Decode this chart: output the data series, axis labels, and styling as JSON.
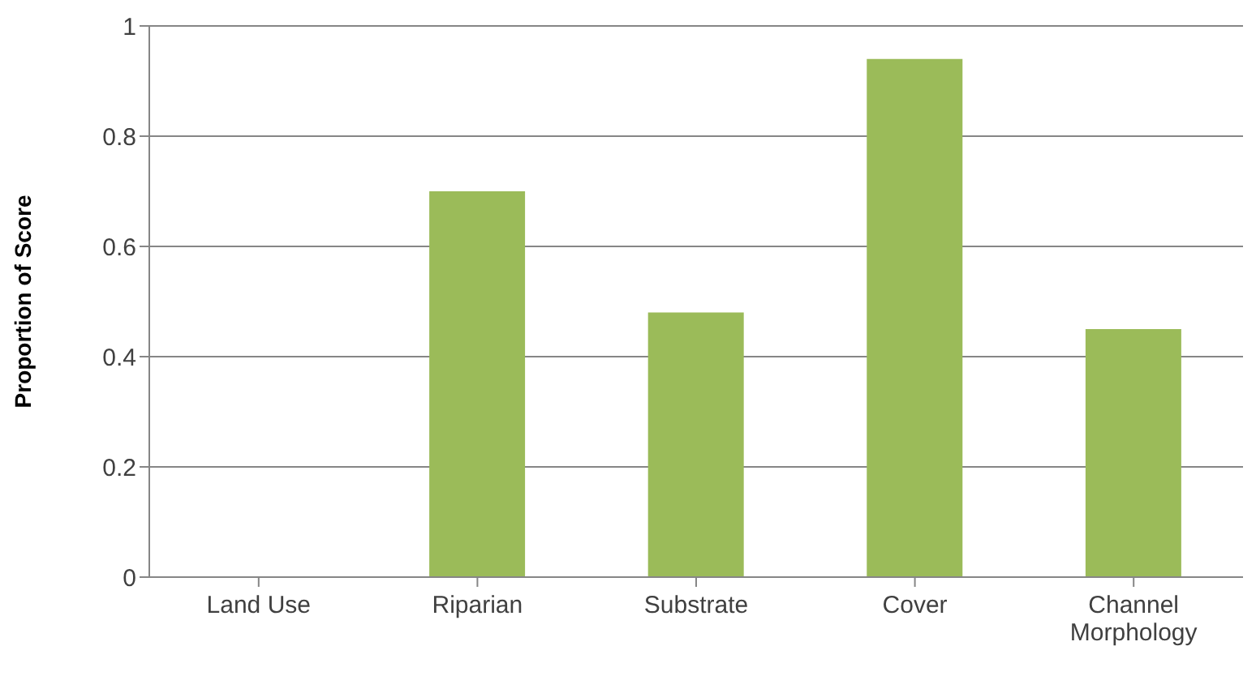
{
  "chart_data": {
    "type": "bar",
    "ylabel": "Proportion of Score",
    "categories": [
      "Land Use",
      "Riparian",
      "Substrate",
      "Cover",
      "Channel Morphology"
    ],
    "values": [
      0,
      0.7,
      0.48,
      0.94,
      0.45
    ],
    "color": "#9bbb59",
    "ylim": [
      0,
      1
    ],
    "yticks": [
      0,
      0.2,
      0.4,
      0.6,
      0.8,
      1
    ],
    "grid": "y"
  }
}
